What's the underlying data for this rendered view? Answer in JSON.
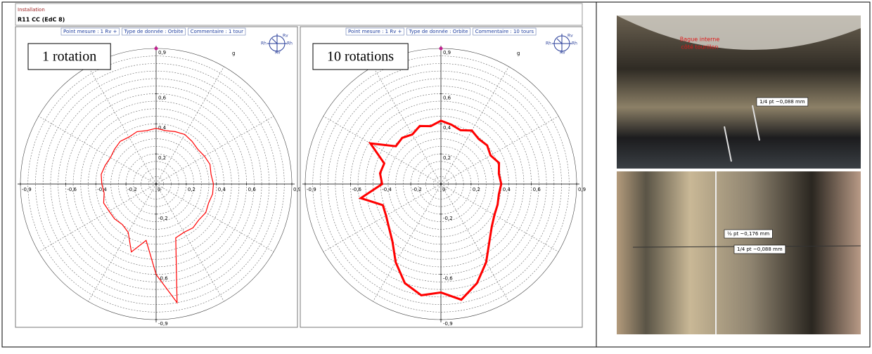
{
  "header": {
    "installation": "Installation",
    "machine": "R11 CC (EdC 8)"
  },
  "compass": [
    "Rv",
    "Rh",
    "Rh",
    "Rv"
  ],
  "chart_data": [
    {
      "type": "polar",
      "title": "1 rotation",
      "header": [
        "Point mesure : 1 Rv +",
        "Type de donnée : Orbite",
        "Commentaire : 1 tour"
      ],
      "unit": "g",
      "rlim": [
        0,
        0.9
      ],
      "color": "#ff0000",
      "xticks": [
        {
          "value": -0.9,
          "label": "-0,9"
        },
        {
          "value": -0.6,
          "label": "-0,6"
        },
        {
          "value": -0.4,
          "label": "-0,4"
        },
        {
          "value": -0.2,
          "label": "-0,2"
        },
        0,
        {
          "value": 0.2,
          "label": "0,2"
        },
        {
          "value": 0.4,
          "label": "0,4"
        },
        {
          "value": 0.6,
          "label": "0,6"
        },
        {
          "value": 0.9,
          "label": "0,9"
        }
      ],
      "yticks": [
        {
          "value": 0.9,
          "label": "0,9"
        },
        {
          "value": 0.6,
          "label": "0,6"
        },
        {
          "value": 0.4,
          "label": "0,4"
        },
        {
          "value": 0.2,
          "label": "0,2"
        },
        {
          "value": -0.2,
          "label": "-0,2"
        },
        {
          "value": -0.6,
          "label": "-0,6"
        },
        {
          "value": -0.9,
          "label": "-0,9"
        }
      ],
      "theta": [
        0,
        10,
        20,
        30,
        40,
        50,
        60,
        70,
        80,
        90,
        100,
        110,
        120,
        130,
        140,
        150,
        160,
        170,
        180,
        190,
        200,
        210,
        220,
        230,
        240,
        250,
        260,
        270,
        280,
        290,
        300,
        310,
        320,
        330,
        340,
        350
      ],
      "r": [
        0.38,
        0.37,
        0.38,
        0.37,
        0.36,
        0.37,
        0.38,
        0.37,
        0.36,
        0.37,
        0.36,
        0.37,
        0.36,
        0.37,
        0.36,
        0.35,
        0.36,
        0.37,
        0.36,
        0.35,
        0.37,
        0.36,
        0.36,
        0.35,
        0.37,
        0.48,
        0.38,
        0.6,
        0.8,
        0.38,
        0.37,
        0.38,
        0.37,
        0.38,
        0.37,
        0.38
      ]
    },
    {
      "type": "polar",
      "title": "10 rotations",
      "header": [
        "Point mesure : 1 Rv +",
        "Type de donnée : Orbite",
        "Commentaire : 10 tours"
      ],
      "unit": "g",
      "rlim": [
        0,
        0.9
      ],
      "color": "#ff0000",
      "xticks": [
        {
          "value": -0.9,
          "label": "-0,9"
        },
        {
          "value": -0.6,
          "label": "-0,6"
        },
        {
          "value": -0.4,
          "label": "-0,4"
        },
        {
          "value": -0.2,
          "label": "-0,2"
        },
        0,
        {
          "value": 0.2,
          "label": "0,2"
        },
        {
          "value": 0.4,
          "label": "0,4"
        },
        {
          "value": 0.6,
          "label": "0,6"
        },
        {
          "value": 0.9,
          "label": "0,9"
        }
      ],
      "yticks": [
        {
          "value": 0.9,
          "label": "0,9"
        },
        {
          "value": 0.6,
          "label": "0,6"
        },
        {
          "value": 0.4,
          "label": "0,4"
        },
        {
          "value": 0.2,
          "label": "0,2"
        },
        {
          "value": -0.2,
          "label": "-0,2"
        },
        {
          "value": -0.6,
          "label": "-0,6"
        },
        {
          "value": -0.9,
          "label": "-0,9"
        }
      ],
      "theta": [
        0,
        10,
        20,
        30,
        40,
        50,
        60,
        70,
        80,
        90,
        100,
        110,
        120,
        130,
        140,
        150,
        160,
        170,
        180,
        190,
        200,
        210,
        220,
        230,
        240,
        250,
        260,
        270,
        280,
        290,
        300,
        310,
        320,
        330,
        340,
        350
      ],
      "r": [
        0.4,
        0.39,
        0.41,
        0.38,
        0.4,
        0.39,
        0.41,
        0.38,
        0.4,
        0.42,
        0.39,
        0.41,
        0.38,
        0.4,
        0.39,
        0.54,
        0.4,
        0.41,
        0.39,
        0.54,
        0.41,
        0.42,
        0.45,
        0.5,
        0.6,
        0.7,
        0.75,
        0.72,
        0.78,
        0.7,
        0.6,
        0.5,
        0.44,
        0.41,
        0.4,
        0.39
      ]
    }
  ],
  "photos": {
    "top": [
      "Bague interne",
      "côté tourillon",
      "1/4 pt ~0,088 mm"
    ],
    "bottom": [
      "½ pt ~0,176 mm",
      "1/4 pt ~0,088 mm"
    ]
  }
}
